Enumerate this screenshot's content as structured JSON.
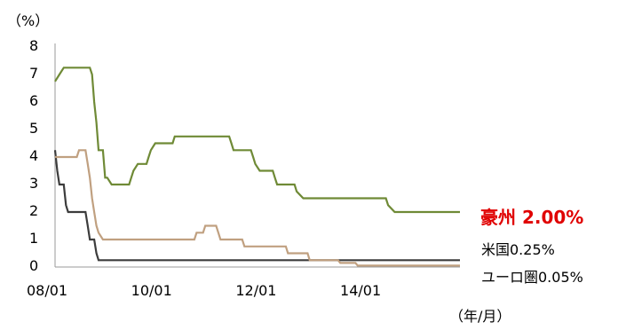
{
  "chart_data": {
    "type": "line",
    "y_unit": "（%）",
    "x_unit": "（年/月）",
    "ylim": [
      0,
      8
    ],
    "y_ticks": [
      "0",
      "1",
      "2",
      "3",
      "4",
      "5",
      "6",
      "7",
      "8"
    ],
    "x_ticks": [
      {
        "label": "08/01",
        "t": 0
      },
      {
        "label": "10/01",
        "t": 24
      },
      {
        "label": "12/01",
        "t": 48
      },
      {
        "label": "14/01",
        "t": 72
      }
    ],
    "xlim_months": [
      0,
      93
    ],
    "grid": false,
    "series": [
      {
        "name": "豪州 2.00%",
        "color": "#6f8a36",
        "label_color": "#e00000",
        "emphasis": true,
        "points": [
          [
            0,
            6.75
          ],
          [
            1,
            7.0
          ],
          [
            2,
            7.25
          ],
          [
            8,
            7.25
          ],
          [
            8.5,
            7.0
          ],
          [
            9,
            6.0
          ],
          [
            9.5,
            5.25
          ],
          [
            10,
            4.25
          ],
          [
            11,
            4.25
          ],
          [
            11.5,
            3.25
          ],
          [
            12,
            3.25
          ],
          [
            13,
            3.0
          ],
          [
            17,
            3.0
          ],
          [
            17.5,
            3.25
          ],
          [
            18,
            3.5
          ],
          [
            19,
            3.75
          ],
          [
            21,
            3.75
          ],
          [
            21.5,
            4.0
          ],
          [
            22,
            4.25
          ],
          [
            23,
            4.5
          ],
          [
            27,
            4.5
          ],
          [
            27.5,
            4.75
          ],
          [
            40,
            4.75
          ],
          [
            40.5,
            4.5
          ],
          [
            41,
            4.25
          ],
          [
            45,
            4.25
          ],
          [
            45.5,
            4.0
          ],
          [
            46,
            3.75
          ],
          [
            47,
            3.5
          ],
          [
            50,
            3.5
          ],
          [
            50.5,
            3.25
          ],
          [
            51,
            3.0
          ],
          [
            55,
            3.0
          ],
          [
            55.5,
            2.75
          ],
          [
            57,
            2.5
          ],
          [
            76,
            2.5
          ],
          [
            76.5,
            2.25
          ],
          [
            78,
            2.0
          ],
          [
            93,
            2.0
          ]
        ]
      },
      {
        "name": "米国0.25%",
        "color": "#3c3c3c",
        "label_color": "#000000",
        "emphasis": false,
        "points": [
          [
            0,
            4.25
          ],
          [
            0.5,
            3.5
          ],
          [
            1,
            3.0
          ],
          [
            2,
            3.0
          ],
          [
            2.5,
            2.25
          ],
          [
            3,
            2.0
          ],
          [
            7,
            2.0
          ],
          [
            7.5,
            1.5
          ],
          [
            8,
            1.0
          ],
          [
            9,
            1.0
          ],
          [
            9.5,
            0.5
          ],
          [
            10,
            0.25
          ],
          [
            93,
            0.25
          ]
        ]
      },
      {
        "name": "ユーロ圏0.05%",
        "color": "#c0a080",
        "label_color": "#000000",
        "emphasis": false,
        "points": [
          [
            0,
            4.0
          ],
          [
            5,
            4.0
          ],
          [
            5.5,
            4.25
          ],
          [
            7,
            4.25
          ],
          [
            7.5,
            3.75
          ],
          [
            8,
            3.25
          ],
          [
            8.5,
            2.5
          ],
          [
            9,
            2.0
          ],
          [
            9.5,
            1.5
          ],
          [
            10,
            1.25
          ],
          [
            11,
            1.0
          ],
          [
            29,
            1.0
          ],
          [
            32,
            1.0
          ],
          [
            32.5,
            1.25
          ],
          [
            34,
            1.25
          ],
          [
            34.5,
            1.5
          ],
          [
            37,
            1.5
          ],
          [
            37.5,
            1.25
          ],
          [
            38,
            1.0
          ],
          [
            43,
            1.0
          ],
          [
            43.5,
            0.75
          ],
          [
            53,
            0.75
          ],
          [
            53.5,
            0.5
          ],
          [
            58,
            0.5
          ],
          [
            58.5,
            0.25
          ],
          [
            65,
            0.25
          ],
          [
            65.5,
            0.15
          ],
          [
            69,
            0.15
          ],
          [
            69.5,
            0.05
          ],
          [
            93,
            0.05
          ]
        ]
      }
    ]
  }
}
